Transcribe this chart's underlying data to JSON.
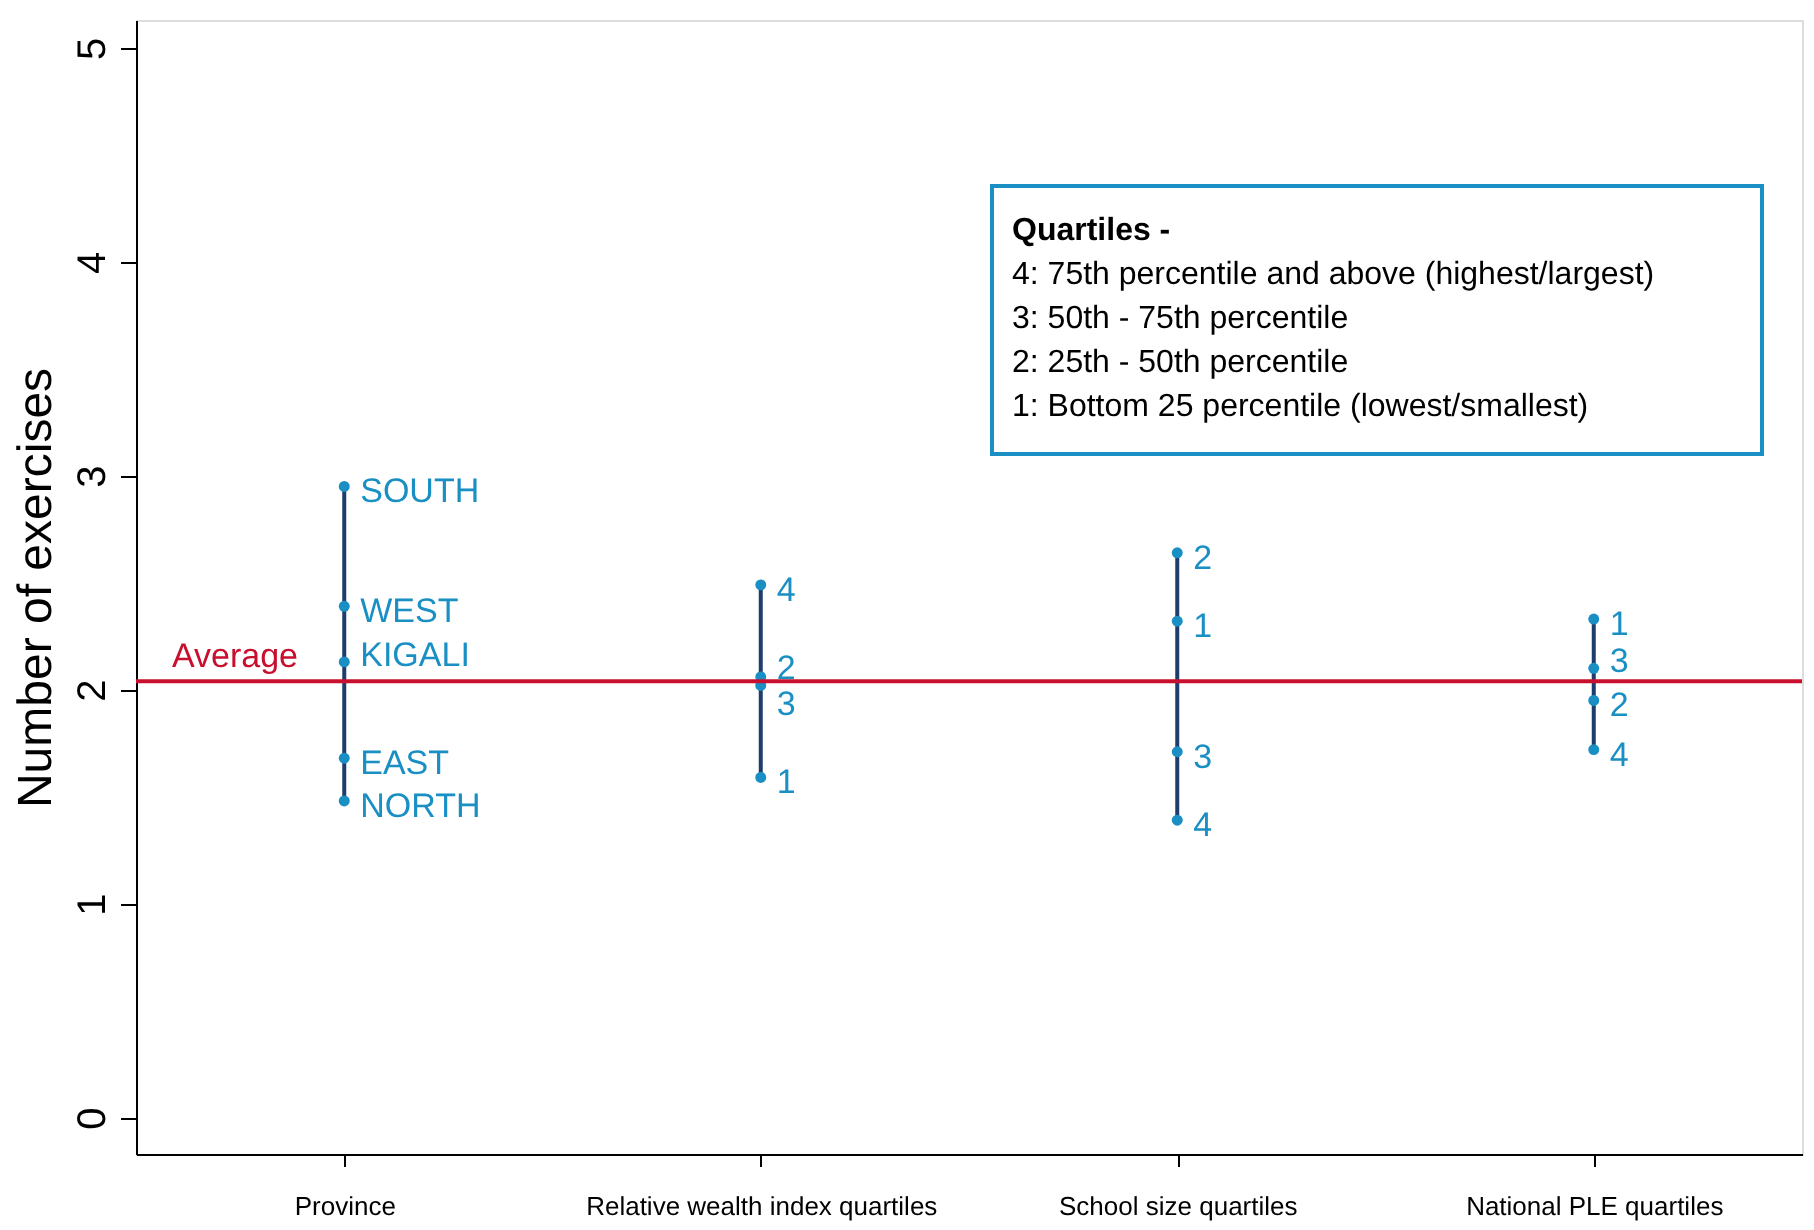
{
  "chart_data": {
    "type": "scatter",
    "ylabel": "Number of exercises",
    "categories": [
      "Province",
      "Relative wealth index quartiles",
      "School size quartiles",
      "National PLE quartiles"
    ],
    "series": [
      {
        "color": "#1a8fc4",
        "x": [
          "Province",
          "Province",
          "Province",
          "Province",
          "Province"
        ],
        "values": [
          2.95,
          2.39,
          2.13,
          1.68,
          1.48
        ]
      },
      {
        "color": "#1a8fc4",
        "x": [
          "Relative wealth index quartiles",
          "Relative wealth index quartiles",
          "Relative wealth index quartiles",
          "Relative wealth index quartiles"
        ],
        "values": [
          2.49,
          2.06,
          2.02,
          1.59
        ]
      },
      {
        "color": "#1a8fc4",
        "x": [
          "School size quartiles",
          "School size quartiles",
          "School size quartiles",
          "School size quartiles"
        ],
        "values": [
          2.64,
          2.32,
          1.71,
          1.39
        ]
      },
      {
        "color": "#1a8fc4",
        "x": [
          "National PLE quartiles",
          "National PLE quartiles",
          "National PLE quartiles",
          "National PLE quartiles"
        ],
        "values": [
          2.33,
          2.1,
          1.95,
          1.72
        ]
      }
    ],
    "ylim": [
      -0.17,
      5.13
    ],
    "yticks": [
      0,
      1,
      2,
      3,
      4,
      5
    ],
    "ref_lines": [
      {
        "axis": "y",
        "value": 2.04,
        "label": "Average",
        "color": "#c8102e"
      }
    ],
    "annotations": [
      "Quartiles -",
      "4: 75th percentile and above (highest/largest)",
      "3: 50th - 75th percentile",
      "2: 25th - 50th percentile",
      "1: Bottom 25 percentile (lowest/smallest)",
      {
        "text": "SOUTH",
        "x": "Province",
        "y": 2.95
      },
      {
        "text": "WEST",
        "x": "Province",
        "y": 2.39
      },
      {
        "text": "KIGALI",
        "x": "Province",
        "y": 2.13
      },
      {
        "text": "EAST",
        "x": "Province",
        "y": 1.68
      },
      {
        "text": "NORTH",
        "x": "Province",
        "y": 1.48
      },
      {
        "text": "4",
        "x": "Relative wealth index quartiles",
        "y": 2.49
      },
      {
        "text": "2",
        "x": "Relative wealth index quartiles",
        "y": 2.06
      },
      {
        "text": "3",
        "x": "Relative wealth index quartiles",
        "y": 2.02
      },
      {
        "text": "1",
        "x": "Relative wealth index quartiles",
        "y": 1.59
      },
      {
        "text": "2",
        "x": "School size quartiles",
        "y": 2.64
      },
      {
        "text": "1",
        "x": "School size quartiles",
        "y": 2.32
      },
      {
        "text": "3",
        "x": "School size quartiles",
        "y": 1.71
      },
      {
        "text": "4",
        "x": "School size quartiles",
        "y": 1.39
      },
      {
        "text": "1",
        "x": "National PLE quartiles",
        "y": 2.33
      },
      {
        "text": "3",
        "x": "National PLE quartiles",
        "y": 2.1
      },
      {
        "text": "2",
        "x": "National PLE quartiles",
        "y": 1.95
      },
      {
        "text": "4",
        "x": "National PLE quartiles",
        "y": 1.72
      }
    ],
    "grid": false,
    "marker": "circle"
  }
}
